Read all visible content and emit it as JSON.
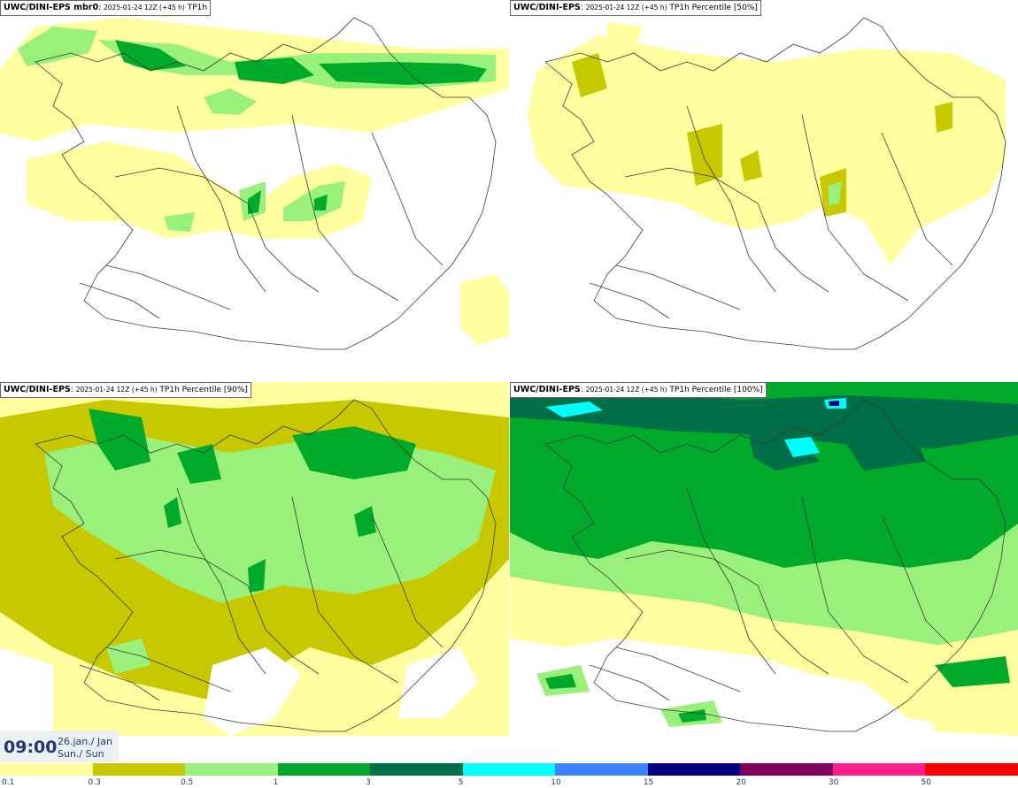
{
  "panels": [
    {
      "id": "p1",
      "model": "UWC/DINI-EPS",
      "model_suffix": " mbr0",
      "run": "2025-01-24 12Z (+45 h)",
      "field": "TP1h"
    },
    {
      "id": "p2",
      "model": "UWC/DINI-EPS",
      "model_suffix": "",
      "run": "2025-01-24 12Z (+45 h)",
      "field": "TP1h Percentile [50%]"
    },
    {
      "id": "p3",
      "model": "UWC/DINI-EPS",
      "model_suffix": "",
      "run": "2025-01-24 12Z (+45 h)",
      "field": "TP1h Percentile [90%]"
    },
    {
      "id": "p4",
      "model": "UWC/DINI-EPS",
      "model_suffix": "",
      "run": "2025-01-24 12Z (+45 h)",
      "field": "TP1h Percentile [100%]"
    }
  ],
  "valid_time": {
    "time": "09:00",
    "date": "26.jan./ Jan",
    "day": "Sun./ Sun"
  },
  "legend": {
    "ticks": [
      "0.1",
      "0.3",
      "0.5",
      "1",
      "3",
      "5",
      "10",
      "15",
      "20",
      "30",
      "50"
    ],
    "colors": [
      "#ffff9f",
      "#c8c800",
      "#99f07a",
      "#00aa2a",
      "#006e46",
      "#00ffff",
      "#3c82ff",
      "#000080",
      "#800060",
      "#ff1f8b",
      "#ff0000"
    ]
  },
  "palette": {
    "y": "#ffff9f",
    "ol": "#c8c800",
    "lg": "#99f07a",
    "g": "#00aa2a",
    "dg": "#006e46",
    "cy": "#00ffff",
    "nv": "#000080"
  }
}
